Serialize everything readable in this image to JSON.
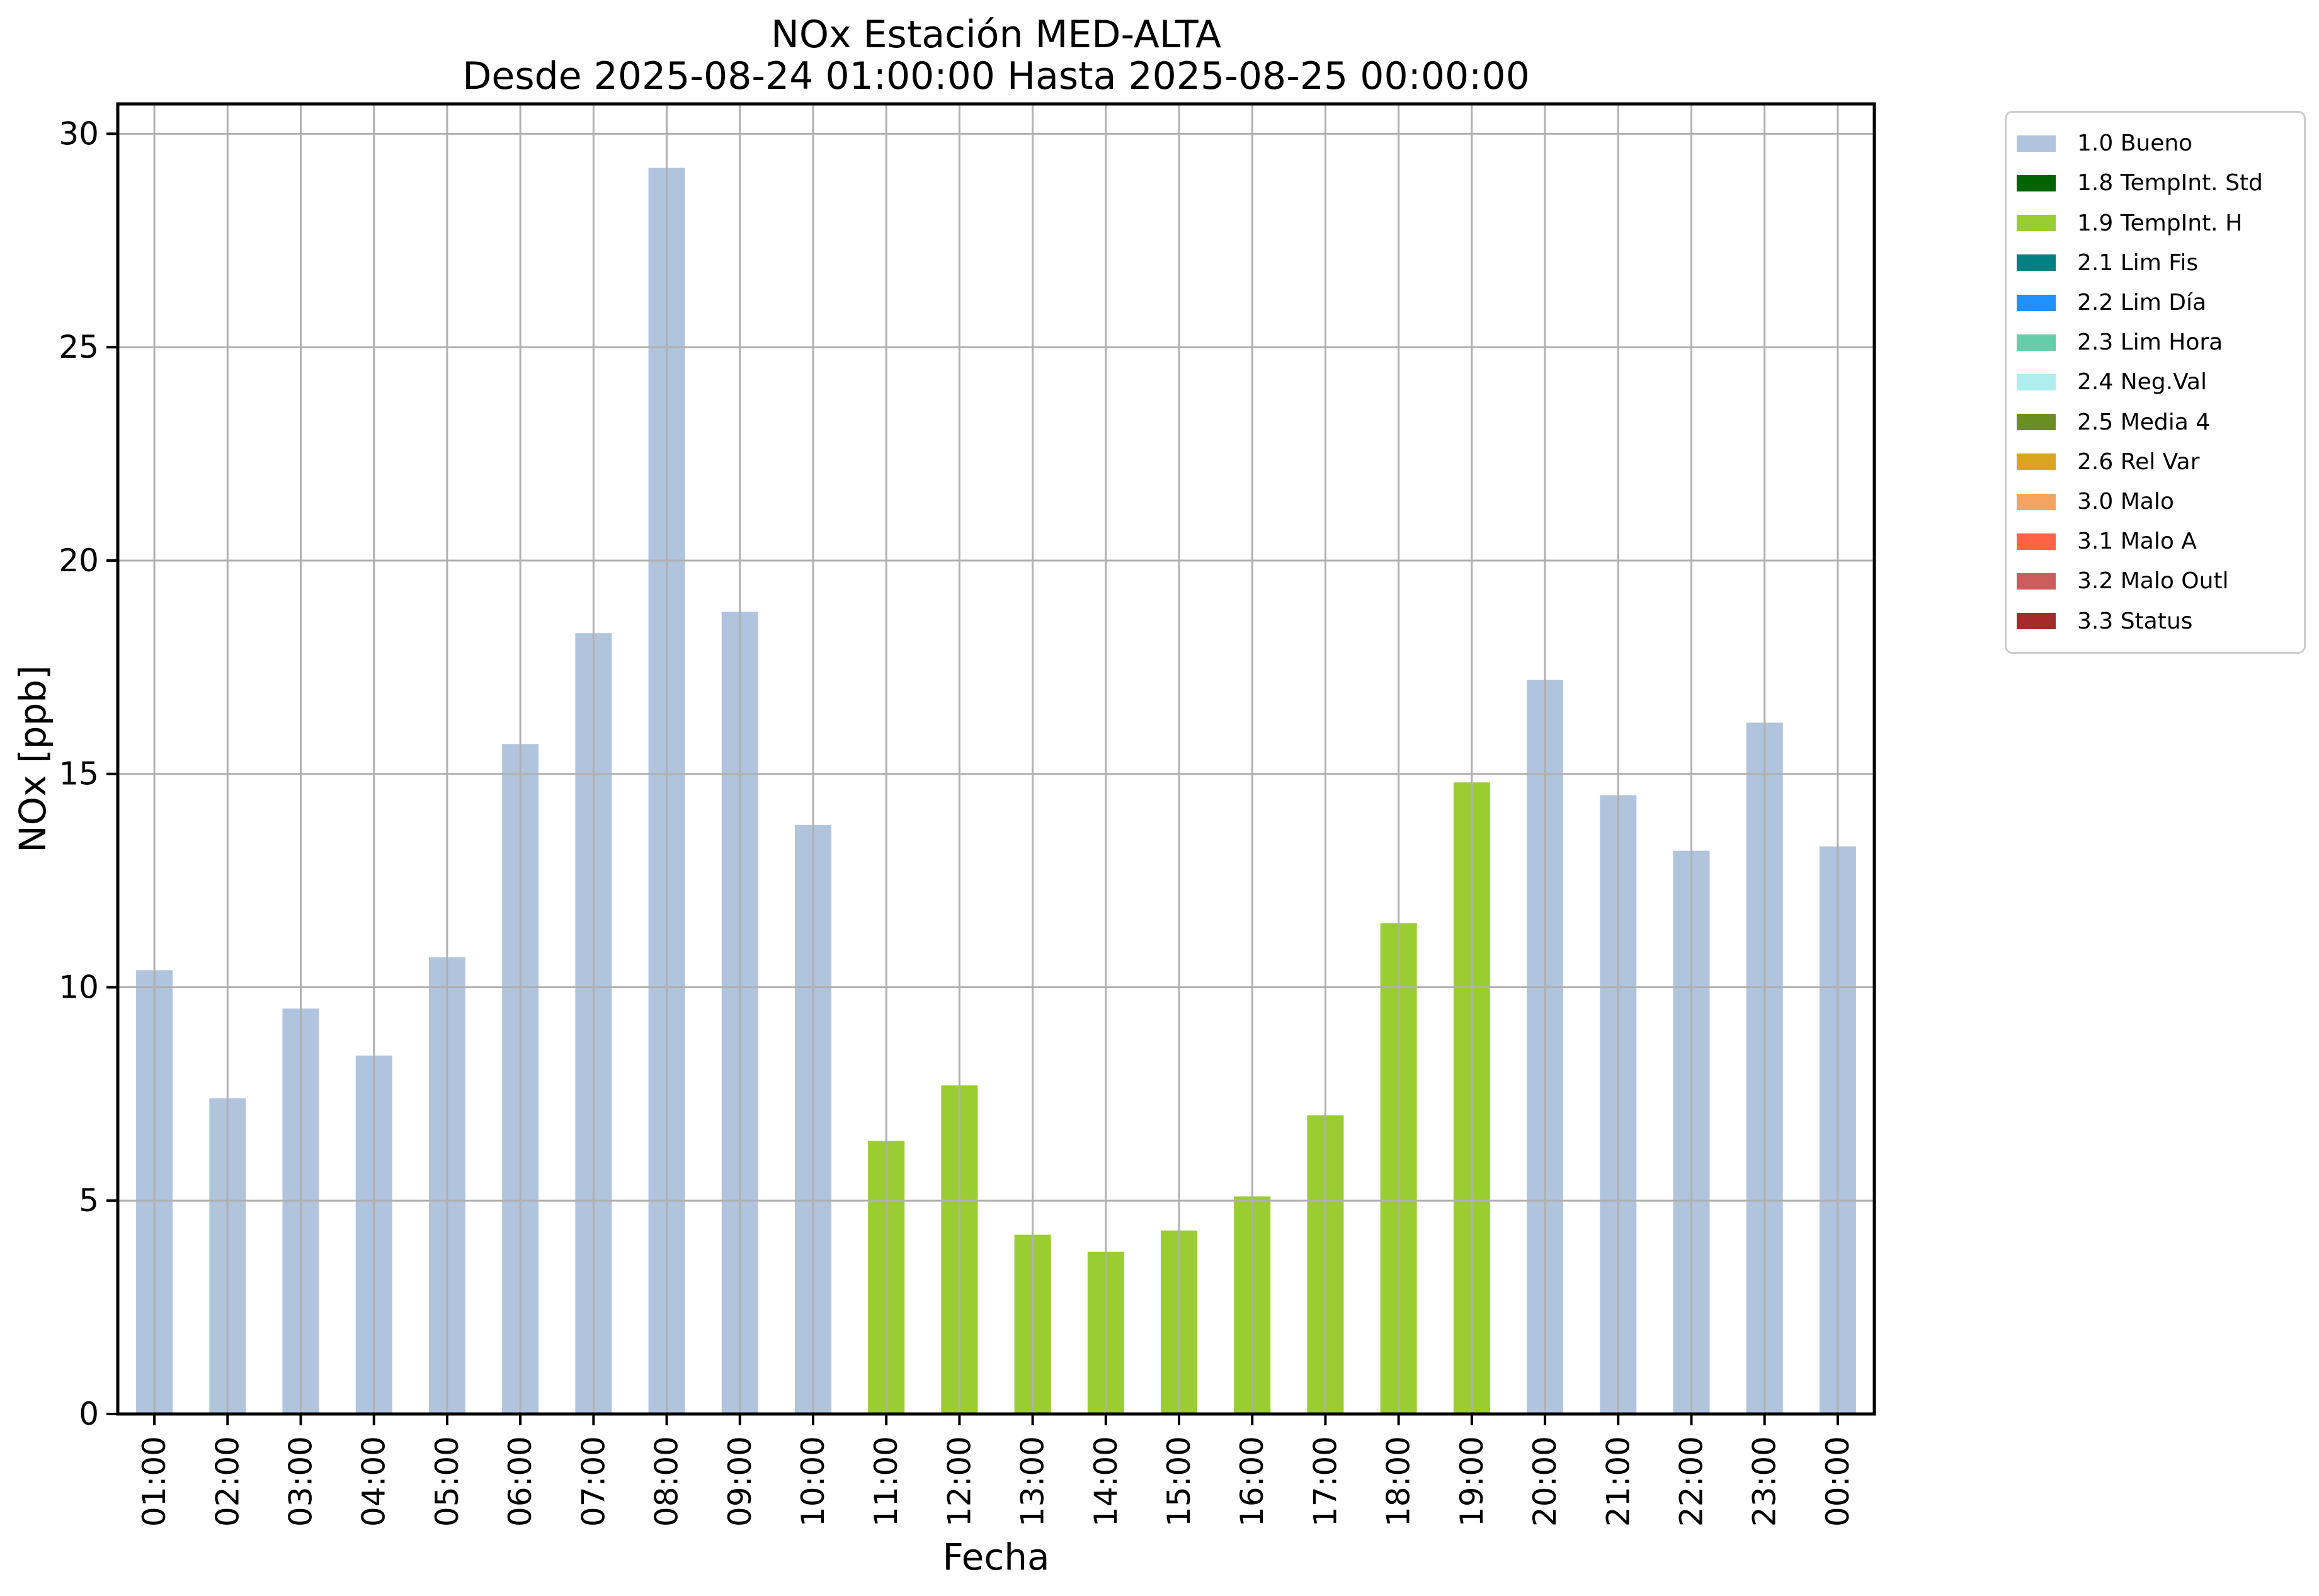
{
  "title": "NOx Estación MED-ALTA",
  "subtitle": "Desde 2025-08-24 01:00:00 Hasta 2025-08-25 00:00:00",
  "axes": {
    "xlabel": "Fecha",
    "ylabel": "NOx [ppb]"
  },
  "chart_data": {
    "type": "bar",
    "title": "NOx Estación MED-ALTA",
    "subtitle": "Desde 2025-08-24 01:00:00 Hasta 2025-08-25 00:00:00",
    "xlabel": "Fecha",
    "ylabel": "NOx [ppb]",
    "ylim": [
      0,
      30.7
    ],
    "yticks": [
      0,
      5,
      10,
      15,
      20,
      25,
      30
    ],
    "grid": true,
    "legend_position": "right-outside",
    "categories": [
      "01:00",
      "02:00",
      "03:00",
      "04:00",
      "05:00",
      "06:00",
      "07:00",
      "08:00",
      "09:00",
      "10:00",
      "11:00",
      "12:00",
      "13:00",
      "14:00",
      "15:00",
      "16:00",
      "17:00",
      "18:00",
      "19:00",
      "20:00",
      "21:00",
      "22:00",
      "23:00",
      "00:00"
    ],
    "values": [
      10.4,
      7.4,
      9.5,
      8.4,
      10.7,
      15.7,
      18.3,
      29.2,
      18.8,
      13.8,
      6.4,
      7.7,
      4.2,
      3.8,
      4.3,
      5.1,
      7.0,
      11.5,
      14.8,
      17.2,
      14.5,
      13.2,
      16.2,
      13.3
    ],
    "bar_status": [
      "1.0 Bueno",
      "1.0 Bueno",
      "1.0 Bueno",
      "1.0 Bueno",
      "1.0 Bueno",
      "1.0 Bueno",
      "1.0 Bueno",
      "1.0 Bueno",
      "1.0 Bueno",
      "1.0 Bueno",
      "1.9 TempInt. H",
      "1.9 TempInt. H",
      "1.9 TempInt. H",
      "1.9 TempInt. H",
      "1.9 TempInt. H",
      "1.9 TempInt. H",
      "1.9 TempInt. H",
      "1.9 TempInt. H",
      "1.9 TempInt. H",
      "1.0 Bueno",
      "1.0 Bueno",
      "1.0 Bueno",
      "1.0 Bueno",
      "1.0 Bueno"
    ],
    "status_colors": {
      "1.0 Bueno": "#B0C4DE",
      "1.9 TempInt. H": "#9ACD32"
    },
    "legend": [
      {
        "label": "1.0 Bueno",
        "color": "#B0C4DE"
      },
      {
        "label": "1.8 TempInt. Std",
        "color": "#006400"
      },
      {
        "label": "1.9 TempInt. H",
        "color": "#9ACD32"
      },
      {
        "label": "2.1 Lim Fis",
        "color": "#008080"
      },
      {
        "label": "2.2 Lim Día",
        "color": "#1E90FF"
      },
      {
        "label": "2.3 Lim Hora",
        "color": "#66CDAA"
      },
      {
        "label": "2.4 Neg.Val",
        "color": "#AFEEEE"
      },
      {
        "label": "2.5 Media 4",
        "color": "#6B8E23"
      },
      {
        "label": "2.6 Rel Var",
        "color": "#DAA520"
      },
      {
        "label": "3.0 Malo",
        "color": "#F4A460"
      },
      {
        "label": "3.1 Malo A",
        "color": "#FF6347"
      },
      {
        "label": "3.2 Malo Outl",
        "color": "#CD5C5C"
      },
      {
        "label": "3.3 Status",
        "color": "#A52A2A"
      }
    ],
    "style": {
      "grid_color": "#b0b0b0",
      "spine_color": "#000000",
      "background": "#ffffff",
      "text_color": "#000000"
    }
  }
}
